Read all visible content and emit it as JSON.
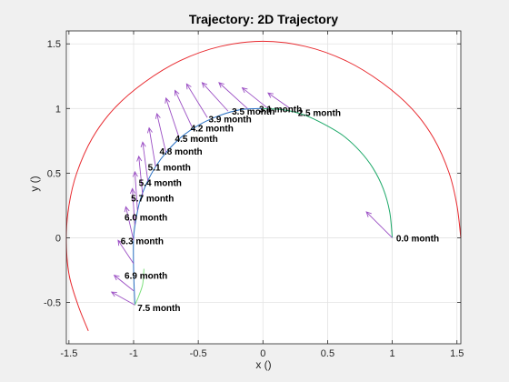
{
  "chart_data": {
    "type": "line",
    "title": "Trajectory: 2D Trajectory",
    "xlabel": "x ()",
    "ylabel": "y ()",
    "xlim": [
      -1.52,
      1.53
    ],
    "ylim": [
      -0.82,
      1.6
    ],
    "xticks": [
      -1.5,
      -1,
      -0.5,
      0,
      0.5,
      1,
      1.5
    ],
    "xtick_labels": [
      "-1.5",
      "-1",
      "-0.5",
      "0",
      "0.5",
      "1",
      "1.5"
    ],
    "yticks": [
      -0.5,
      0,
      0.5,
      1,
      1.5
    ],
    "ytick_labels": [
      "-0.5",
      "0",
      "0.5",
      "1",
      "1.5"
    ],
    "grid": true,
    "series": [
      {
        "color": "#1fa96a",
        "x": [
          1.0,
          0.98,
          0.93,
          0.85,
          0.75,
          0.62,
          0.47,
          0.32,
          0.16,
          0.0
        ],
        "y": [
          0.0,
          0.2,
          0.38,
          0.54,
          0.67,
          0.79,
          0.88,
          0.95,
          0.99,
          1.0
        ]
      },
      {
        "color": "#2a71c4",
        "x": [
          0.0,
          -0.18,
          -0.35,
          -0.5,
          -0.63,
          -0.74,
          -0.83,
          -0.9,
          -0.95,
          -0.98,
          -1.0,
          -1.0,
          -0.99
        ],
        "y": [
          1.0,
          0.99,
          0.94,
          0.87,
          0.78,
          0.67,
          0.55,
          0.42,
          0.29,
          0.15,
          0.0,
          -0.25,
          -0.52
        ]
      },
      {
        "color": "#7ee07e",
        "x": [
          -0.99,
          -0.96,
          -0.93,
          -0.92
        ],
        "y": [
          -0.52,
          -0.45,
          -0.36,
          -0.24
        ]
      },
      {
        "color": "#e8292e",
        "x": [
          -1.35,
          -1.43,
          -1.5,
          -1.52,
          -1.5,
          -1.44,
          -1.32,
          -1.15,
          -0.92,
          -0.64,
          -0.33,
          0.0,
          0.33,
          0.64,
          0.92,
          1.15,
          1.32,
          1.44,
          1.5,
          1.53
        ],
        "y": [
          -0.72,
          -0.52,
          -0.28,
          0.0,
          0.25,
          0.5,
          0.77,
          1.0,
          1.2,
          1.37,
          1.48,
          1.52,
          1.48,
          1.37,
          1.2,
          1.0,
          0.77,
          0.5,
          0.25,
          0.0
        ]
      }
    ],
    "arrows": {
      "color": "#9b4fc4",
      "items": [
        {
          "x": 1.0,
          "y": 0.0,
          "dx": -0.2,
          "dy": 0.2
        },
        {
          "x": 0.21,
          "y": 1.0,
          "dx": -0.17,
          "dy": 0.12
        },
        {
          "x": 0.04,
          "y": 1.0,
          "dx": -0.2,
          "dy": 0.16
        },
        {
          "x": -0.12,
          "y": 1.0,
          "dx": -0.22,
          "dy": 0.2
        },
        {
          "x": -0.27,
          "y": 0.98,
          "dx": -0.2,
          "dy": 0.22
        },
        {
          "x": -0.43,
          "y": 0.93,
          "dx": -0.16,
          "dy": 0.26
        },
        {
          "x": -0.55,
          "y": 0.86,
          "dx": -0.13,
          "dy": 0.28
        },
        {
          "x": -0.65,
          "y": 0.78,
          "dx": -0.1,
          "dy": 0.3
        },
        {
          "x": -0.75,
          "y": 0.66,
          "dx": -0.07,
          "dy": 0.3
        },
        {
          "x": -0.83,
          "y": 0.55,
          "dx": -0.05,
          "dy": 0.3
        },
        {
          "x": -0.89,
          "y": 0.44,
          "dx": -0.04,
          "dy": 0.3
        },
        {
          "x": -0.93,
          "y": 0.33,
          "dx": -0.03,
          "dy": 0.3
        },
        {
          "x": -0.97,
          "y": 0.21,
          "dx": -0.02,
          "dy": 0.3
        },
        {
          "x": -0.99,
          "y": 0.1,
          "dx": -0.02,
          "dy": 0.28
        },
        {
          "x": -1.0,
          "y": -0.02,
          "dx": -0.06,
          "dy": 0.26
        },
        {
          "x": -1.0,
          "y": -0.2,
          "dx": -0.12,
          "dy": 0.18
        },
        {
          "x": -1.0,
          "y": -0.41,
          "dx": -0.15,
          "dy": 0.12
        },
        {
          "x": -0.99,
          "y": -0.52,
          "dx": -0.18,
          "dy": 0.1
        }
      ]
    },
    "time_labels": [
      {
        "text": "0.0 month",
        "x": 1.03,
        "y": 0.0
      },
      {
        "text": "2.5 month",
        "x": 0.27,
        "y": 0.97
      },
      {
        "text": "3.1 month",
        "x": -0.03,
        "y": 1.0
      },
      {
        "text": "3.5 month",
        "x": -0.24,
        "y": 0.98
      },
      {
        "text": "3.9 month",
        "x": -0.42,
        "y": 0.92
      },
      {
        "text": "4.2 month",
        "x": -0.56,
        "y": 0.85
      },
      {
        "text": "4.5 month",
        "x": -0.68,
        "y": 0.77
      },
      {
        "text": "4.8 month",
        "x": -0.8,
        "y": 0.67
      },
      {
        "text": "5.1 month",
        "x": -0.89,
        "y": 0.55
      },
      {
        "text": "5.4 month",
        "x": -0.96,
        "y": 0.43
      },
      {
        "text": "5.7 month",
        "x": -1.02,
        "y": 0.31
      },
      {
        "text": "6.0 month",
        "x": -1.07,
        "y": 0.16
      },
      {
        "text": "6.3 month",
        "x": -1.1,
        "y": -0.02
      },
      {
        "text": "6.9 month",
        "x": -1.07,
        "y": -0.29
      },
      {
        "text": "7.5 month",
        "x": -0.97,
        "y": -0.54
      }
    ]
  }
}
